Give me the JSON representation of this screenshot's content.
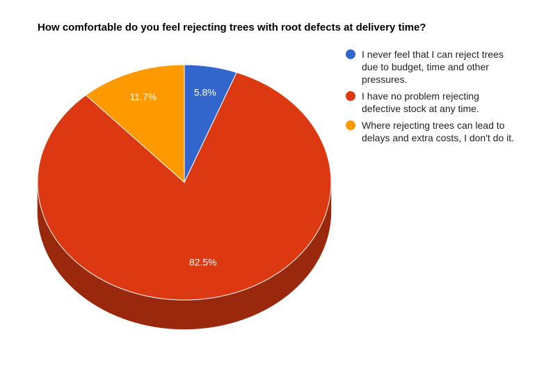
{
  "chart_data": {
    "type": "pie",
    "title": "How comfortable do you feel rejecting trees with root defects at delivery time?",
    "three_d": true,
    "start_angle_deg": 0,
    "direction": "clockwise",
    "legend_position": "right",
    "slices": [
      {
        "label": "I never feel that I can reject trees due to budget, time and other pressures.",
        "value": 5.8,
        "value_label": "5.8%",
        "color": "#3366cc",
        "side_color": "#24478f"
      },
      {
        "label": "I have no problem rejecting defective stock at any time.",
        "value": 82.5,
        "value_label": "82.5%",
        "color": "#dc3912",
        "side_color": "#9a280d"
      },
      {
        "label": "Where rejecting trees can lead to delays and extra costs, I don't do it.",
        "value": 11.7,
        "value_label": "11.7%",
        "color": "#ff9900",
        "side_color": "#b36b00"
      }
    ]
  }
}
